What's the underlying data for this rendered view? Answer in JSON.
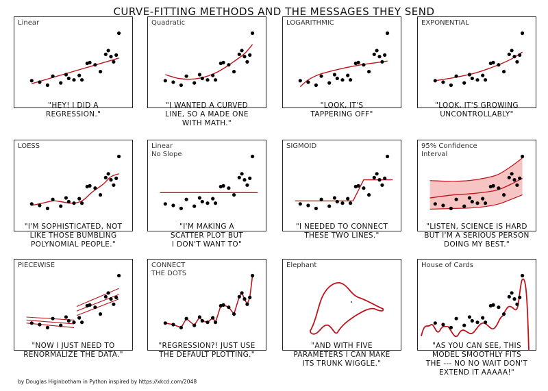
{
  "title": "CURVE-FITTING METHODS AND THE MESSAGES THEY SEND",
  "credit": "by Douglas Higinbotham in Python inspired by https://xkcd.com/2048",
  "colors": {
    "line": "#c0141c",
    "band": "#f7c4c4",
    "dot": "#000000",
    "border": "#222222"
  },
  "chart_data": [
    {
      "type": "scatter",
      "label": "Linear",
      "fit": "linear",
      "caption": "\"HEY! I DID A\nREGRESSION.\"",
      "x": [
        5,
        8,
        11,
        13,
        16,
        18,
        19,
        21,
        23,
        24,
        26,
        27,
        29,
        31,
        33,
        34,
        35,
        36,
        37,
        38
      ],
      "y": [
        32,
        30,
        26,
        38,
        29,
        40,
        35,
        33,
        39,
        33,
        55,
        56,
        53,
        44,
        67,
        72,
        64,
        57,
        66,
        95
      ],
      "fit_points": [
        [
          5,
          28
        ],
        [
          38,
          62
        ]
      ]
    },
    {
      "type": "scatter",
      "label": "Quadratic",
      "fit": "quadratic",
      "caption": "\"I WANTED A CURVED\nLINE, SO A MADE ONE\nWITH MATH.\"",
      "x": [
        5,
        8,
        11,
        13,
        16,
        18,
        19,
        21,
        23,
        24,
        26,
        27,
        29,
        31,
        33,
        34,
        35,
        36,
        37,
        38
      ],
      "y": [
        32,
        30,
        26,
        38,
        29,
        40,
        35,
        33,
        39,
        33,
        55,
        56,
        53,
        44,
        67,
        72,
        64,
        57,
        66,
        95
      ],
      "fit_points": [
        [
          5,
          40
        ],
        [
          10,
          35
        ],
        [
          15,
          34
        ],
        [
          20,
          37
        ],
        [
          25,
          44
        ],
        [
          30,
          55
        ],
        [
          35,
          68
        ],
        [
          38,
          80
        ]
      ]
    },
    {
      "type": "scatter",
      "label": "LOGARITHMIC",
      "fit": "logarithmic",
      "caption": "\"LOOK, IT'S\nTAPPERING OFF\"",
      "x": [
        5,
        8,
        11,
        13,
        16,
        18,
        19,
        21,
        23,
        24,
        26,
        27,
        29,
        31,
        33,
        34,
        35,
        36,
        37,
        38
      ],
      "y": [
        32,
        30,
        26,
        38,
        29,
        40,
        35,
        33,
        39,
        33,
        55,
        56,
        53,
        44,
        67,
        72,
        64,
        57,
        66,
        95
      ],
      "fit_points": [
        [
          5,
          24
        ],
        [
          8,
          33
        ],
        [
          12,
          40
        ],
        [
          16,
          44
        ],
        [
          22,
          49
        ],
        [
          28,
          53
        ],
        [
          34,
          56
        ],
        [
          38,
          58
        ]
      ]
    },
    {
      "type": "scatter",
      "label": "EXPONENTIAL",
      "fit": "exponential",
      "caption": "\"LOOK, IT'S GROWING\nUNCONTROLLABLY\"",
      "x": [
        5,
        8,
        11,
        13,
        16,
        18,
        19,
        21,
        23,
        24,
        26,
        27,
        29,
        31,
        33,
        34,
        35,
        36,
        37,
        38
      ],
      "y": [
        32,
        30,
        26,
        38,
        29,
        40,
        35,
        33,
        39,
        33,
        55,
        56,
        53,
        44,
        67,
        72,
        64,
        57,
        66,
        95
      ],
      "fit_points": [
        [
          5,
          32
        ],
        [
          12,
          36
        ],
        [
          20,
          42
        ],
        [
          26,
          49
        ],
        [
          31,
          56
        ],
        [
          35,
          63
        ],
        [
          38,
          70
        ]
      ]
    },
    {
      "type": "scatter",
      "label": "LOESS",
      "fit": "loess",
      "caption": "\"I'M SOPHISTICATED, NOT\nLIKE THOSE BUMBLING\nPOLYNOMIAL PEOPLE.\"",
      "x": [
        5,
        8,
        11,
        13,
        16,
        18,
        19,
        21,
        23,
        24,
        26,
        27,
        29,
        31,
        33,
        34,
        35,
        36,
        37,
        38
      ],
      "y": [
        32,
        30,
        26,
        38,
        29,
        40,
        35,
        33,
        39,
        33,
        55,
        56,
        53,
        44,
        67,
        72,
        64,
        57,
        66,
        95
      ],
      "fit_points": [
        [
          5,
          30
        ],
        [
          9,
          33
        ],
        [
          13,
          36
        ],
        [
          16,
          35
        ],
        [
          20,
          33
        ],
        [
          24,
          36
        ],
        [
          28,
          48
        ],
        [
          32,
          58
        ],
        [
          35,
          68
        ],
        [
          38,
          72
        ]
      ]
    },
    {
      "type": "scatter",
      "label": "Linear\nNo Slope",
      "fit": "flat",
      "caption": "\"I'M MAKING A\nSCATTER PLOT BUT\nI DON'T WANT TO\"",
      "x": [
        5,
        8,
        11,
        13,
        16,
        18,
        19,
        21,
        23,
        24,
        26,
        27,
        29,
        31,
        33,
        34,
        35,
        36,
        37,
        38
      ],
      "y": [
        32,
        30,
        26,
        38,
        29,
        40,
        35,
        33,
        39,
        33,
        55,
        56,
        53,
        44,
        67,
        72,
        64,
        57,
        66,
        95
      ],
      "fit_points": [
        [
          3,
          47
        ],
        [
          40,
          47
        ]
      ]
    },
    {
      "type": "scatter",
      "label": "SIGMOID",
      "fit": "sigmoid",
      "caption": "\"I NEEDED TO CONNECT\nTHESE TWO LINES.\"",
      "x": [
        5,
        8,
        11,
        13,
        16,
        18,
        19,
        21,
        23,
        24,
        26,
        27,
        29,
        31,
        33,
        34,
        35,
        36,
        37,
        38
      ],
      "y": [
        32,
        30,
        26,
        38,
        29,
        40,
        35,
        33,
        39,
        33,
        55,
        56,
        53,
        44,
        67,
        72,
        64,
        57,
        66,
        95
      ],
      "fit_points": [
        [
          3,
          36
        ],
        [
          20,
          36
        ],
        [
          25,
          36
        ],
        [
          29,
          64
        ],
        [
          40,
          64
        ]
      ]
    },
    {
      "type": "scatter",
      "label": "95% Confidence\nInterval",
      "fit": "band",
      "caption": "\"LISTEN, SCIENCE IS HARD\nBUT I'M A SERIOUS PERSON\nDOING MY BEST.\"",
      "x": [
        5,
        8,
        11,
        13,
        16,
        18,
        19,
        21,
        23,
        24,
        26,
        27,
        29,
        31,
        33,
        34,
        35,
        36,
        37,
        38
      ],
      "y": [
        32,
        30,
        26,
        38,
        29,
        40,
        35,
        33,
        39,
        33,
        55,
        56,
        53,
        44,
        67,
        72,
        64,
        57,
        66,
        95
      ],
      "fit_points": [
        [
          3,
          40
        ],
        [
          12,
          44
        ],
        [
          20,
          46
        ],
        [
          28,
          50
        ],
        [
          33,
          57
        ],
        [
          38,
          66
        ]
      ],
      "band_upper": [
        [
          3,
          63
        ],
        [
          12,
          62
        ],
        [
          20,
          64
        ],
        [
          28,
          70
        ],
        [
          33,
          80
        ],
        [
          38,
          93
        ]
      ],
      "band_lower": [
        [
          3,
          25
        ],
        [
          12,
          26
        ],
        [
          20,
          27
        ],
        [
          28,
          31
        ],
        [
          33,
          37
        ],
        [
          38,
          44
        ]
      ]
    },
    {
      "type": "scatter",
      "label": "PIECEWISE",
      "fit": "piecewise",
      "caption": "\"NOW I JUST NEED TO\nRENORMALIZE THE DATA.\"",
      "x": [
        5,
        8,
        11,
        13,
        16,
        18,
        19,
        21,
        23,
        24,
        26,
        27,
        29,
        31,
        33,
        34,
        35,
        36,
        37,
        38
      ],
      "y": [
        32,
        30,
        26,
        38,
        29,
        40,
        35,
        33,
        39,
        33,
        55,
        56,
        53,
        44,
        67,
        72,
        64,
        57,
        66,
        95
      ],
      "segments": [
        [
          [
            3,
            36
          ],
          [
            21,
            31
          ]
        ],
        [
          [
            3,
            40
          ],
          [
            21,
            36
          ]
        ],
        [
          [
            3,
            32
          ],
          [
            21,
            26
          ]
        ],
        [
          [
            22,
            48
          ],
          [
            38,
            70
          ]
        ],
        [
          [
            22,
            42
          ],
          [
            38,
            64
          ]
        ],
        [
          [
            22,
            54
          ],
          [
            38,
            78
          ]
        ]
      ]
    },
    {
      "type": "line",
      "label": "CONNECT\nTHE DOTS",
      "fit": "connect",
      "caption": "\"REGRESSION?!  JUST USE\nTHE DEFAULT PLOTTING.\"",
      "x": [
        5,
        8,
        11,
        13,
        16,
        18,
        19,
        21,
        23,
        24,
        26,
        27,
        29,
        31,
        33,
        34,
        35,
        36,
        37,
        38
      ],
      "y": [
        32,
        30,
        26,
        38,
        29,
        40,
        35,
        33,
        39,
        33,
        55,
        56,
        53,
        44,
        67,
        72,
        64,
        57,
        66,
        95
      ]
    },
    {
      "type": "line",
      "label": "Elephant",
      "fit": "elephant",
      "caption": "\"AND WITH FIVE\nPARAMETERS I CAN MAKE\nITS TRUNK WIGGLE.\""
    },
    {
      "type": "scatter",
      "label": "House of Cards",
      "fit": "overfit",
      "caption": "\"AS YOU CAN SEE, THIS\nMODEL SMOOTHLY FITS\nTHE --- NO NO WAIT DON'T\nEXTEND IT AAAAA!\"",
      "x": [
        5,
        8,
        11,
        13,
        16,
        18,
        19,
        21,
        23,
        24,
        26,
        27,
        29,
        31,
        33,
        34,
        35,
        36,
        37,
        38
      ],
      "y": [
        32,
        30,
        26,
        38,
        29,
        40,
        35,
        33,
        39,
        33,
        55,
        56,
        53,
        44,
        67,
        72,
        64,
        57,
        66,
        95
      ]
    }
  ]
}
